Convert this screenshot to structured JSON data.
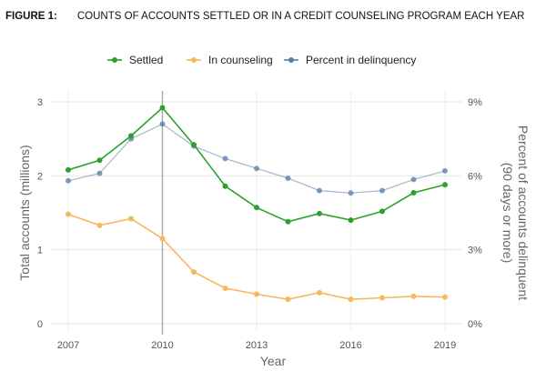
{
  "figure": {
    "number": "FIGURE 1:",
    "title": "COUNTS OF ACCOUNTS SETTLED OR IN A CREDIT COUNSELING PROGRAM EACH YEAR"
  },
  "chart_data": {
    "type": "line",
    "x": [
      2007,
      2008,
      2009,
      2010,
      2011,
      2012,
      2013,
      2014,
      2015,
      2016,
      2017,
      2018,
      2019
    ],
    "series": [
      {
        "name": "Settled",
        "axis": "left",
        "color": "#2ca02c",
        "values": [
          2.08,
          2.21,
          2.54,
          2.92,
          2.42,
          1.86,
          1.57,
          1.38,
          1.49,
          1.4,
          1.52,
          1.77,
          1.88
        ]
      },
      {
        "name": "In counseling",
        "axis": "left",
        "color": "#f5b95c",
        "values": [
          1.48,
          1.33,
          1.42,
          1.15,
          0.7,
          0.48,
          0.4,
          0.33,
          0.42,
          0.33,
          0.35,
          0.37,
          0.36
        ]
      },
      {
        "name": "Percent in delinquency",
        "axis": "right",
        "color": "#5b7ba6",
        "values": [
          5.8,
          6.1,
          7.5,
          8.1,
          7.2,
          6.7,
          6.3,
          5.9,
          5.4,
          5.3,
          5.4,
          5.85,
          6.2
        ]
      }
    ],
    "xlabel": "Year",
    "ylabel_left": "Total accounts (millions)",
    "ylabel_right": "Percent of accounts delinquent (90 days or more)",
    "x_ticks": [
      "2007",
      "2010",
      "2013",
      "2016",
      "2019"
    ],
    "x_tick_values": [
      2007,
      2010,
      2013,
      2016,
      2019
    ],
    "y_left_ticks": [
      "0",
      "1",
      "2",
      "3"
    ],
    "y_left_tick_values": [
      0,
      1,
      2,
      3
    ],
    "y_right_ticks": [
      "0%",
      "3%",
      "6%",
      "9%"
    ],
    "y_right_tick_values": [
      0,
      3,
      6,
      9
    ],
    "xlim": [
      2007,
      2019
    ],
    "ylim_left": [
      0,
      3
    ],
    "ylim_right": [
      0,
      9
    ],
    "reference_line_x": 2010,
    "grid": true,
    "legend_position": "top-center"
  }
}
